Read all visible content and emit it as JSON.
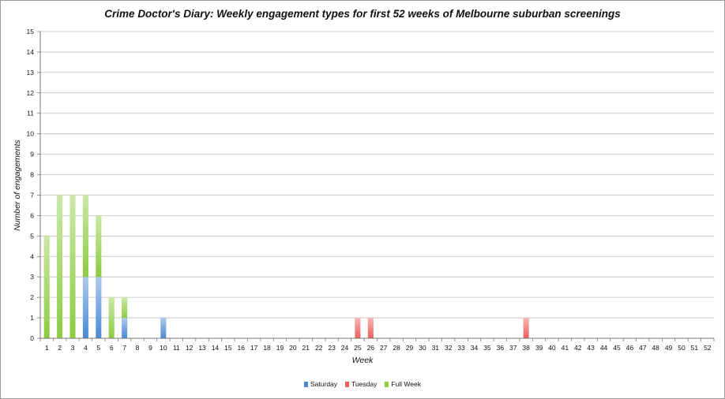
{
  "chart_data": {
    "type": "bar",
    "stacked": true,
    "title": "Crime Doctor's Diary: Weekly engagement types for first 52 weeks of Melbourne suburban screenings",
    "xlabel": "Week",
    "ylabel": "Number of engagements",
    "ylim": [
      0,
      15
    ],
    "y_ticks": [
      0,
      1,
      2,
      3,
      4,
      5,
      6,
      7,
      8,
      9,
      10,
      11,
      12,
      13,
      14,
      15
    ],
    "grid": "horizontal",
    "legend_position": "bottom",
    "categories": [
      "1",
      "2",
      "3",
      "4",
      "5",
      "6",
      "7",
      "8",
      "9",
      "10",
      "11",
      "12",
      "13",
      "14",
      "15",
      "16",
      "17",
      "18",
      "19",
      "20",
      "21",
      "22",
      "23",
      "24",
      "25",
      "26",
      "27",
      "28",
      "29",
      "30",
      "31",
      "32",
      "33",
      "34",
      "35",
      "36",
      "37",
      "38",
      "39",
      "40",
      "41",
      "42",
      "43",
      "44",
      "45",
      "46",
      "47",
      "48",
      "49",
      "50",
      "51",
      "52"
    ],
    "series": [
      {
        "name": "Saturday",
        "color": "#4a8ad6",
        "values": [
          0,
          0,
          0,
          3,
          3,
          0,
          1,
          0,
          0,
          1,
          0,
          0,
          0,
          0,
          0,
          0,
          0,
          0,
          0,
          0,
          0,
          0,
          0,
          0,
          0,
          0,
          0,
          0,
          0,
          0,
          0,
          0,
          0,
          0,
          0,
          0,
          0,
          0,
          0,
          0,
          0,
          0,
          0,
          0,
          0,
          0,
          0,
          0,
          0,
          0,
          0,
          0
        ]
      },
      {
        "name": "Tuesday",
        "color": "#ec5f5b",
        "values": [
          0,
          0,
          0,
          0,
          0,
          0,
          0,
          0,
          0,
          0,
          0,
          0,
          0,
          0,
          0,
          0,
          0,
          0,
          0,
          0,
          0,
          0,
          0,
          0,
          1,
          1,
          0,
          0,
          0,
          0,
          0,
          0,
          0,
          0,
          0,
          0,
          0,
          1,
          0,
          0,
          0,
          0,
          0,
          0,
          0,
          0,
          0,
          0,
          0,
          0,
          0,
          0
        ]
      },
      {
        "name": "Full Week",
        "color": "#8ccc3f",
        "values": [
          5,
          7,
          7,
          4,
          3,
          2,
          1,
          0,
          0,
          0,
          0,
          0,
          0,
          0,
          0,
          0,
          0,
          0,
          0,
          0,
          0,
          0,
          0,
          0,
          0,
          0,
          0,
          0,
          0,
          0,
          0,
          0,
          0,
          0,
          0,
          0,
          0,
          0,
          0,
          0,
          0,
          0,
          0,
          0,
          0,
          0,
          0,
          0,
          0,
          0,
          0,
          0
        ]
      }
    ]
  }
}
